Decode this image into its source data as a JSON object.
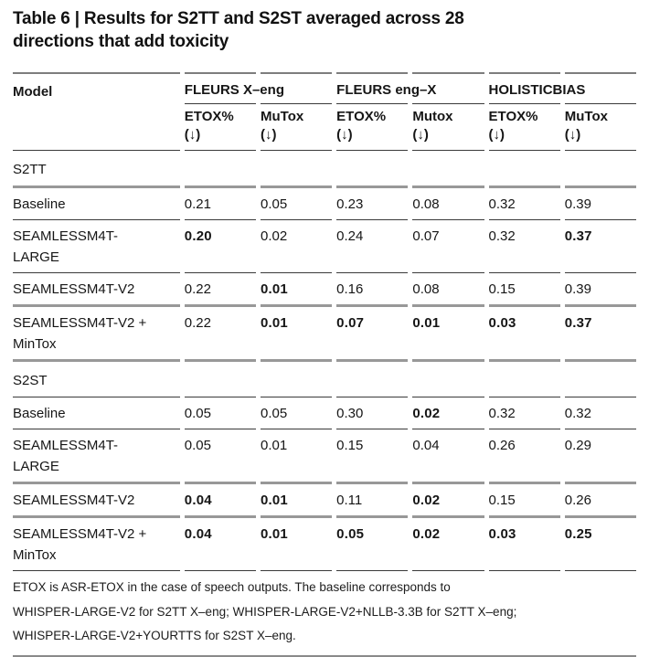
{
  "title": "Table 6 | Results for S2TT and S2ST averaged across 28\ndirections that add toxicity",
  "table": {
    "model_header": "Model",
    "groups": [
      {
        "label": "FLEURS X–eng"
      },
      {
        "label": "FLEURS eng–X"
      },
      {
        "label": "HOLISTICBIAS"
      }
    ],
    "subheaders": [
      "ETOX%\n(↓)",
      "MuTox\n(↓)",
      "ETOX%\n(↓)",
      "Mutox\n(↓)",
      "ETOX%\n(↓)",
      "MuTox\n(↓)"
    ],
    "sections": [
      {
        "label": "S2TT",
        "rows": [
          {
            "model": "Baseline",
            "values": [
              "0.21",
              "0.05",
              "0.23",
              "0.08",
              "0.32",
              "0.39"
            ],
            "bold": [
              false,
              false,
              false,
              false,
              false,
              false
            ]
          },
          {
            "model": "SEAMLESSM4T-\nLARGE",
            "values": [
              "0.20",
              "0.02",
              "0.24",
              "0.07",
              "0.32",
              "0.37"
            ],
            "bold": [
              true,
              false,
              false,
              false,
              false,
              true
            ]
          },
          {
            "model": "SEAMLESSM4T-V2",
            "values": [
              "0.22",
              "0.01",
              "0.16",
              "0.08",
              "0.15",
              "0.39"
            ],
            "bold": [
              false,
              true,
              false,
              false,
              false,
              false
            ]
          },
          {
            "model": "SEAMLESSM4T-V2 +\nMinTox",
            "values": [
              "0.22",
              "0.01",
              "0.07",
              "0.01",
              "0.03",
              "0.37"
            ],
            "bold": [
              false,
              true,
              true,
              true,
              true,
              true
            ]
          }
        ]
      },
      {
        "label": "S2ST",
        "rows": [
          {
            "model": "Baseline",
            "values": [
              "0.05",
              "0.05",
              "0.30",
              "0.02",
              "0.32",
              "0.32"
            ],
            "bold": [
              false,
              false,
              false,
              true,
              false,
              false
            ]
          },
          {
            "model": "SEAMLESSM4T-\nLARGE",
            "values": [
              "0.05",
              "0.01",
              "0.15",
              "0.04",
              "0.26",
              "0.29"
            ],
            "bold": [
              false,
              false,
              false,
              false,
              false,
              false
            ]
          },
          {
            "model": "SEAMLESSM4T-V2",
            "values": [
              "0.04",
              "0.01",
              "0.11",
              "0.02",
              "0.15",
              "0.26"
            ],
            "bold": [
              true,
              true,
              false,
              true,
              false,
              false
            ]
          },
          {
            "model": "SEAMLESSM4T-V2 +\nMinTox",
            "values": [
              "0.04",
              "0.01",
              "0.05",
              "0.02",
              "0.03",
              "0.25"
            ],
            "bold": [
              true,
              true,
              true,
              true,
              true,
              true
            ]
          }
        ]
      }
    ]
  },
  "footnote": "ETOX is ASR-ETOX in the case of speech outputs. The baseline corresponds to\nWHISPER-LARGE-V2 for S2TT X–eng; WHISPER-LARGE-V2+NLLB-3.3B for S2TT X–eng;\nWHISPER-LARGE-V2+YOURTTS for S2ST X–eng."
}
